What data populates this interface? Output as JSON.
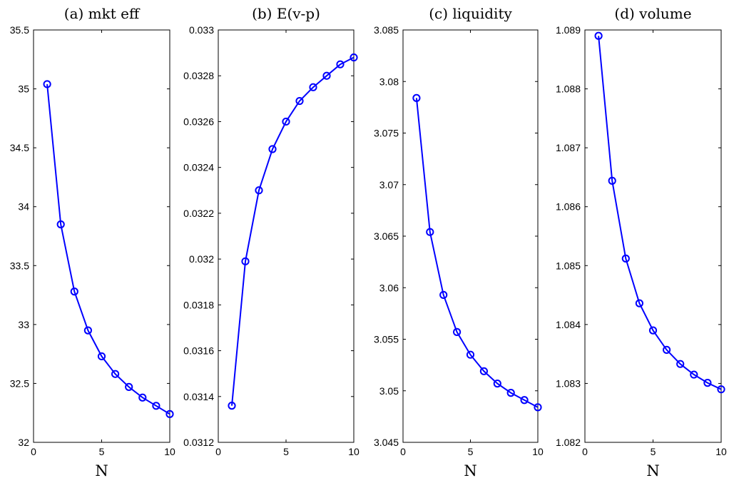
{
  "chart_data": [
    {
      "type": "line",
      "title": "(a) mkt eff",
      "xlabel": "N",
      "ylabel": "",
      "xlim": [
        0,
        10
      ],
      "ylim": [
        32,
        35.5
      ],
      "xticks": [
        0,
        5,
        10
      ],
      "xtick_labels": [
        "0",
        "5",
        "10"
      ],
      "yticks": [
        32,
        32.5,
        33,
        33.5,
        34,
        34.5,
        35,
        35.5
      ],
      "ytick_labels": [
        "32",
        "32.5",
        "33",
        "33.5",
        "34",
        "34.5",
        "35",
        "35.5"
      ],
      "x": [
        1,
        2,
        3,
        4,
        5,
        6,
        7,
        8,
        9,
        10
      ],
      "y": [
        35.04,
        33.85,
        33.28,
        32.95,
        32.73,
        32.58,
        32.47,
        32.38,
        32.31,
        32.24
      ],
      "color": "#0000ff",
      "marker": "circle"
    },
    {
      "type": "line",
      "title": "(b) E(v-p)",
      "xlabel": "",
      "ylabel": "",
      "xlim": [
        0,
        10
      ],
      "ylim": [
        0.0312,
        0.033
      ],
      "xticks": [
        0,
        5,
        10
      ],
      "xtick_labels": [
        "0",
        "5",
        "10"
      ],
      "yticks": [
        0.0312,
        0.0314,
        0.0316,
        0.0318,
        0.032,
        0.0322,
        0.0324,
        0.0326,
        0.0328,
        0.033
      ],
      "ytick_labels": [
        "0.0312",
        "0.0314",
        "0.0316",
        "0.0318",
        "0.032",
        "0.0322",
        "0.0324",
        "0.0326",
        "0.0328",
        "0.033"
      ],
      "x": [
        1,
        2,
        3,
        4,
        5,
        6,
        7,
        8,
        9,
        10
      ],
      "y": [
        0.03136,
        0.03199,
        0.0323,
        0.03248,
        0.0326,
        0.03269,
        0.03275,
        0.0328,
        0.03285,
        0.03288
      ],
      "color": "#0000ff",
      "marker": "circle"
    },
    {
      "type": "line",
      "title": "(c) liquidity",
      "xlabel": "N",
      "ylabel": "",
      "xlim": [
        0,
        10
      ],
      "ylim": [
        3.045,
        3.085
      ],
      "xticks": [
        0,
        5,
        10
      ],
      "xtick_labels": [
        "0",
        "5",
        "10"
      ],
      "yticks": [
        3.045,
        3.05,
        3.055,
        3.06,
        3.065,
        3.07,
        3.075,
        3.08,
        3.085
      ],
      "ytick_labels": [
        "3.045",
        "3.05",
        "3.055",
        "3.06",
        "3.065",
        "3.07",
        "3.075",
        "3.08",
        "3.085"
      ],
      "x": [
        1,
        2,
        3,
        4,
        5,
        6,
        7,
        8,
        9,
        10
      ],
      "y": [
        3.0784,
        3.0654,
        3.0593,
        3.0557,
        3.0535,
        3.0519,
        3.0507,
        3.0498,
        3.0491,
        3.0484
      ],
      "color": "#0000ff",
      "marker": "circle"
    },
    {
      "type": "line",
      "title": "(d) volume",
      "xlabel": "N",
      "ylabel": "",
      "xlim": [
        0,
        10
      ],
      "ylim": [
        1.082,
        1.089
      ],
      "xticks": [
        0,
        5,
        10
      ],
      "xtick_labels": [
        "0",
        "5",
        "10"
      ],
      "yticks": [
        1.082,
        1.083,
        1.084,
        1.085,
        1.086,
        1.087,
        1.088,
        1.089
      ],
      "ytick_labels": [
        "1.082",
        "1.083",
        "1.084",
        "1.085",
        "1.086",
        "1.087",
        "1.088",
        "1.089"
      ],
      "x": [
        1,
        2,
        3,
        4,
        5,
        6,
        7,
        8,
        9,
        10
      ],
      "y": [
        1.0889,
        1.08644,
        1.08512,
        1.08436,
        1.0839,
        1.08357,
        1.08333,
        1.08315,
        1.08301,
        1.0829
      ],
      "color": "#0000ff",
      "marker": "circle"
    }
  ]
}
